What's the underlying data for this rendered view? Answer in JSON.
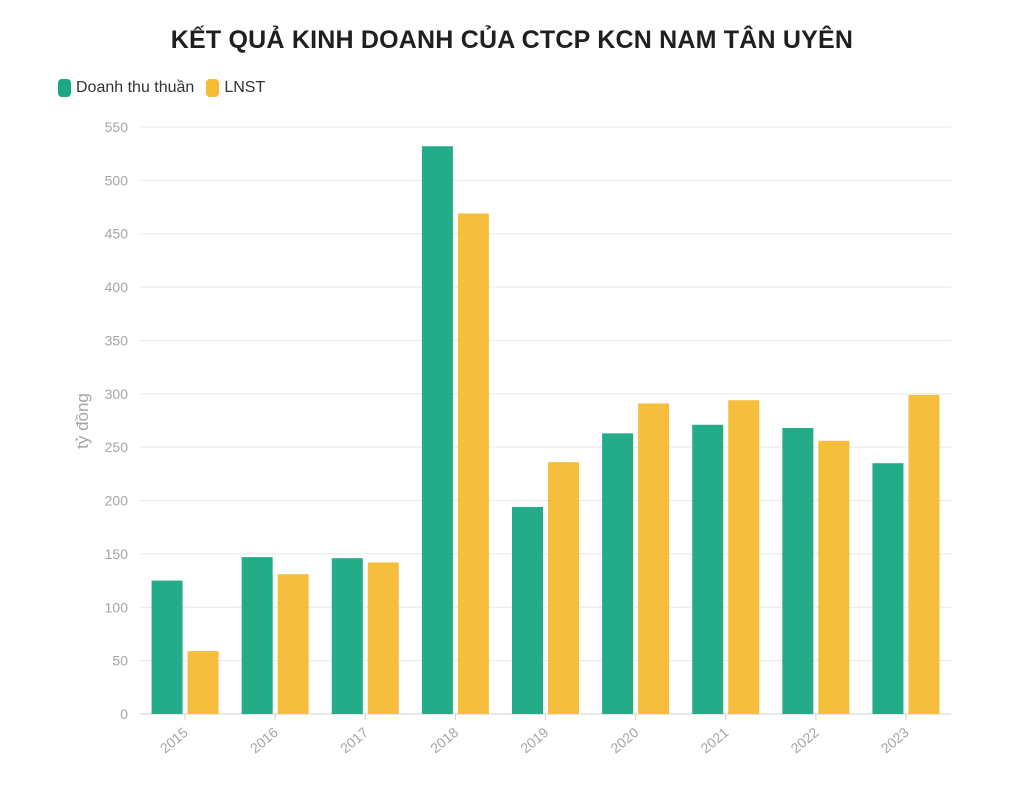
{
  "chart_data": {
    "type": "bar",
    "title": "KẾT QUẢ KINH DOANH CỦA CTCP KCN NAM TÂN UYÊN",
    "xlabel": "",
    "ylabel": "tỷ đồng",
    "categories": [
      "2015",
      "2016",
      "2017",
      "2018",
      "2019",
      "2020",
      "2021",
      "2022",
      "2023"
    ],
    "series": [
      {
        "name": "Doanh thu thuần",
        "color": "#18a883",
        "values": [
          125,
          147,
          146,
          532,
          194,
          263,
          271,
          268,
          235
        ]
      },
      {
        "name": "LNST",
        "color": "#f5bb33",
        "values": [
          59,
          131,
          142,
          469,
          236,
          291,
          294,
          256,
          299
        ]
      }
    ],
    "ylim": [
      0,
      550
    ],
    "yticks": [
      "0",
      "50",
      "100",
      "150",
      "200",
      "250",
      "300",
      "350",
      "400",
      "450",
      "500",
      "550"
    ],
    "grid": true,
    "legend": "top-left"
  }
}
